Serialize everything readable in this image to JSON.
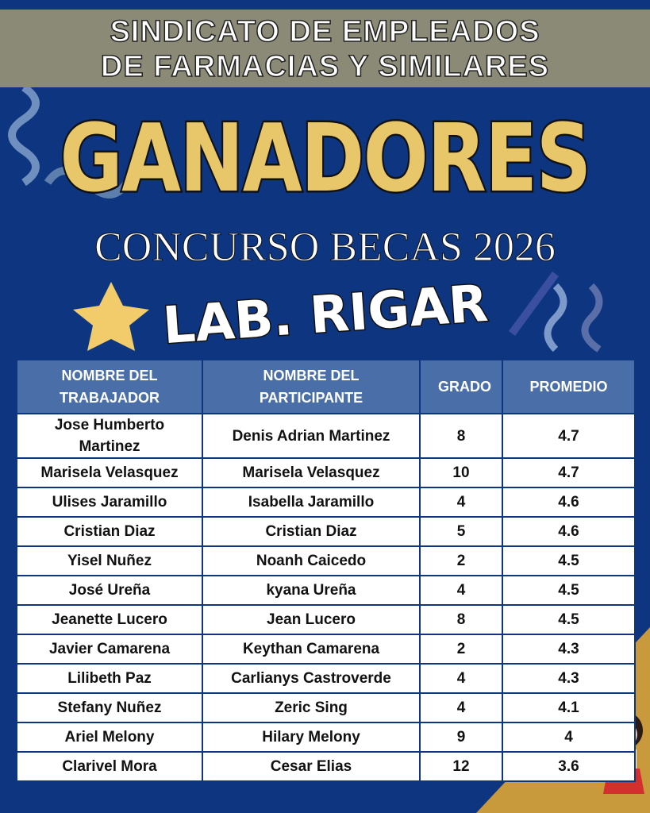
{
  "header": {
    "lines": [
      "SINDICATO DE EMPLEADOS",
      "DE FARMACIAS Y SIMILARES"
    ]
  },
  "title": "GANADORES",
  "subtitle": "CONCURSO BECAS 2026",
  "company": "LAB. RIGAR",
  "table": {
    "columns": [
      "NOMBRE DEL TRABAJADOR",
      "NOMBRE DEL PARTICIPANTE",
      "GRADO",
      "PROMEDIO"
    ],
    "rows": [
      [
        "Jose Humberto Martinez",
        "Denis Adrian Martinez",
        8,
        4.7
      ],
      [
        "Marisela Velasquez",
        "Marisela Velasquez",
        10,
        4.7
      ],
      [
        "Ulises Jaramillo",
        "Isabella Jaramillo",
        4,
        4.6
      ],
      [
        "Cristian Diaz",
        "Cristian Diaz",
        5,
        4.6
      ],
      [
        "Yisel Nuñez",
        "Noanh Caicedo",
        2,
        4.5
      ],
      [
        "José Ureña",
        "kyana Ureña",
        4,
        4.5
      ],
      [
        "Jeanette Lucero",
        "Jean Lucero",
        8,
        4.5
      ],
      [
        "Javier Camarena",
        "Keythan Camarena",
        2,
        4.3
      ],
      [
        "Lilibeth Paz",
        "Carlianys Castroverde",
        4,
        4.3
      ],
      [
        "Stefany Nuñez",
        "Zeric Sing",
        4,
        4.1
      ],
      [
        "Ariel Melony",
        "Hilary Melony",
        9,
        4
      ],
      [
        "Clarivel Mora",
        "Cesar Elias",
        12,
        3.6
      ]
    ]
  }
}
